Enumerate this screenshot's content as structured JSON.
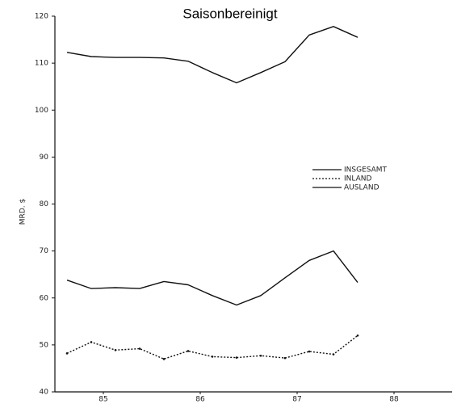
{
  "chart_data": {
    "type": "line",
    "title": "Saisonbereinigt",
    "ylabel": "MRD. $",
    "x": [
      84.625,
      84.875,
      85.125,
      85.375,
      85.625,
      85.875,
      86.125,
      86.375,
      86.625,
      86.875,
      87.125,
      87.375,
      87.625
    ],
    "series": [
      {
        "name": "INSGESAMT",
        "color": "#111111",
        "style": "solid",
        "values": [
          112.3,
          111.4,
          111.2,
          111.2,
          111.1,
          110.4,
          108,
          105.8,
          108,
          110.3,
          116,
          117.8,
          115.5
        ]
      },
      {
        "name": "INLAND",
        "color": "#111111",
        "style": "dashed",
        "values": [
          48.2,
          50.6,
          48.9,
          49.2,
          47,
          48.7,
          47.5,
          47.3,
          47.7,
          47.2,
          48.6,
          48,
          52
        ]
      },
      {
        "name": "AUSLAND",
        "color": "#111111",
        "style": "solid",
        "values": [
          63.8,
          62,
          62.2,
          62,
          63.5,
          62.8,
          60.5,
          58.5,
          60.5,
          64.3,
          68,
          70,
          63.3
        ]
      }
    ],
    "xlim": [
      84.5,
      88.6
    ],
    "xticks": [
      85,
      86,
      87,
      88
    ],
    "ylim": [
      40,
      120
    ],
    "yticks": [
      40,
      50,
      60,
      70,
      80,
      90,
      100,
      110,
      120
    ],
    "grid": false
  }
}
